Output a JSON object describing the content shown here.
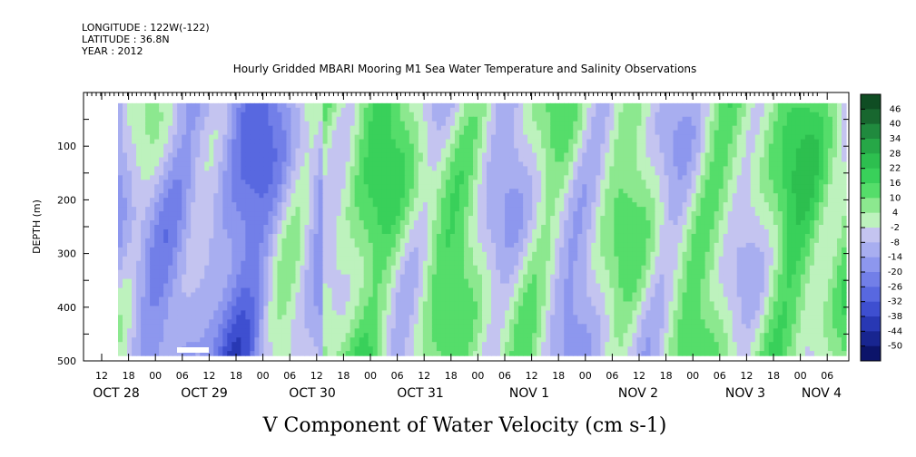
{
  "header": {
    "longitude": "LONGITUDE : 122W(-122)",
    "latitude": "LATITUDE : 36.8N",
    "year": "YEAR : 2012"
  },
  "chart_data": {
    "type": "heatmap",
    "title": "Hourly Gridded MBARI Mooring M1 Sea Water Temperature and Salinity Observations",
    "xlabel": "V Component of Water Velocity (cm s-1)",
    "ylabel": "DEPTH (m)",
    "ylim": [
      500,
      0
    ],
    "y_ticks": [
      100,
      200,
      300,
      400,
      500
    ],
    "y_tick_labels": [
      "100",
      "200",
      "300",
      "400",
      "500"
    ],
    "data_depth_range": [
      20,
      490
    ],
    "x_hour_labels": [
      "12",
      "18",
      "00",
      "06",
      "12",
      "18",
      "00",
      "06",
      "12",
      "18",
      "00",
      "06",
      "12",
      "18",
      "00",
      "06",
      "12",
      "18",
      "00",
      "06",
      "12",
      "18",
      "00",
      "06",
      "12",
      "18",
      "00",
      "06"
    ],
    "x_day_labels": [
      "OCT 28",
      "OCT 29",
      "OCT 30",
      "OCT 31",
      "NOV  1",
      "NOV  2",
      "NOV  3",
      "NOV  4"
    ],
    "colorbar": {
      "labels": [
        "46",
        "40",
        "34",
        "28",
        "22",
        "16",
        "10",
        "4",
        "-2",
        "-8",
        "-14",
        "-20",
        "-26",
        "-32",
        "-38",
        "-44",
        "-50"
      ],
      "colors": [
        "#0f4d23",
        "#18672f",
        "#208a3e",
        "#26a747",
        "#2dbf4f",
        "#39d05a",
        "#55dd6a",
        "#8ce88f",
        "#bdf2bd",
        "#c4c4f0",
        "#a8aef0",
        "#8d97ee",
        "#727fe8",
        "#5868e0",
        "#3e4fd0",
        "#2838b4",
        "#182590",
        "#0c146a"
      ],
      "positive_color": "#2bc84c",
      "negative_color": "#7f8ef0"
    }
  }
}
